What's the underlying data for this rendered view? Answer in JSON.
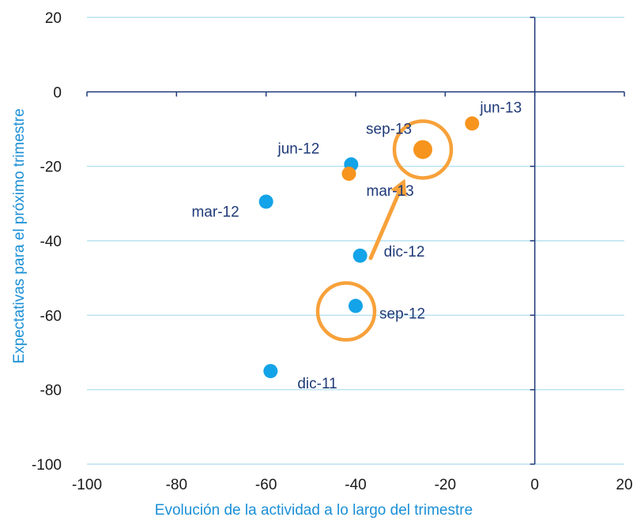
{
  "chart_data": {
    "type": "scatter",
    "title": "",
    "xlabel": "Evolución de la actividad a lo largo del trimestre",
    "ylabel": "Expectativas para el próximo trimestre",
    "xlim": [
      -100,
      20
    ],
    "ylim": [
      -100,
      20
    ],
    "x_ticks": [
      "-100",
      "-80",
      "-60",
      "-40",
      "-20",
      "0",
      "20"
    ],
    "y_ticks": [
      "20",
      "0",
      "-20",
      "-40",
      "-60",
      "-80",
      "-100"
    ],
    "grid": true,
    "colors": {
      "series_2012": "#13a3e8",
      "series_2013": "#f7941d",
      "axis": "#1f3a78",
      "grid": "#a9dcef",
      "highlight": "#f7a13a"
    },
    "series": [
      {
        "color": "#13a3e8",
        "points": [
          {
            "label": "dic-11",
            "x": -59,
            "y": -75
          },
          {
            "label": "mar-12",
            "x": -60,
            "y": -29.5
          },
          {
            "label": "jun-12",
            "x": -41,
            "y": -19.5
          },
          {
            "label": "sep-12",
            "x": -40,
            "y": -57.5
          },
          {
            "label": "dic-12",
            "x": -39,
            "y": -44
          }
        ]
      },
      {
        "color": "#f7941d",
        "points": [
          {
            "label": "mar-13",
            "x": -41.5,
            "y": -22
          },
          {
            "label": "jun-13",
            "x": -14,
            "y": -8.5
          },
          {
            "label": "sep-13",
            "x": -25,
            "y": -15.5
          }
        ]
      }
    ],
    "annotations": [
      {
        "type": "circle",
        "around": "sep-12"
      },
      {
        "type": "circle",
        "around": "sep-13"
      },
      {
        "type": "arrow",
        "from": "sep-12",
        "to": "sep-13"
      }
    ]
  }
}
